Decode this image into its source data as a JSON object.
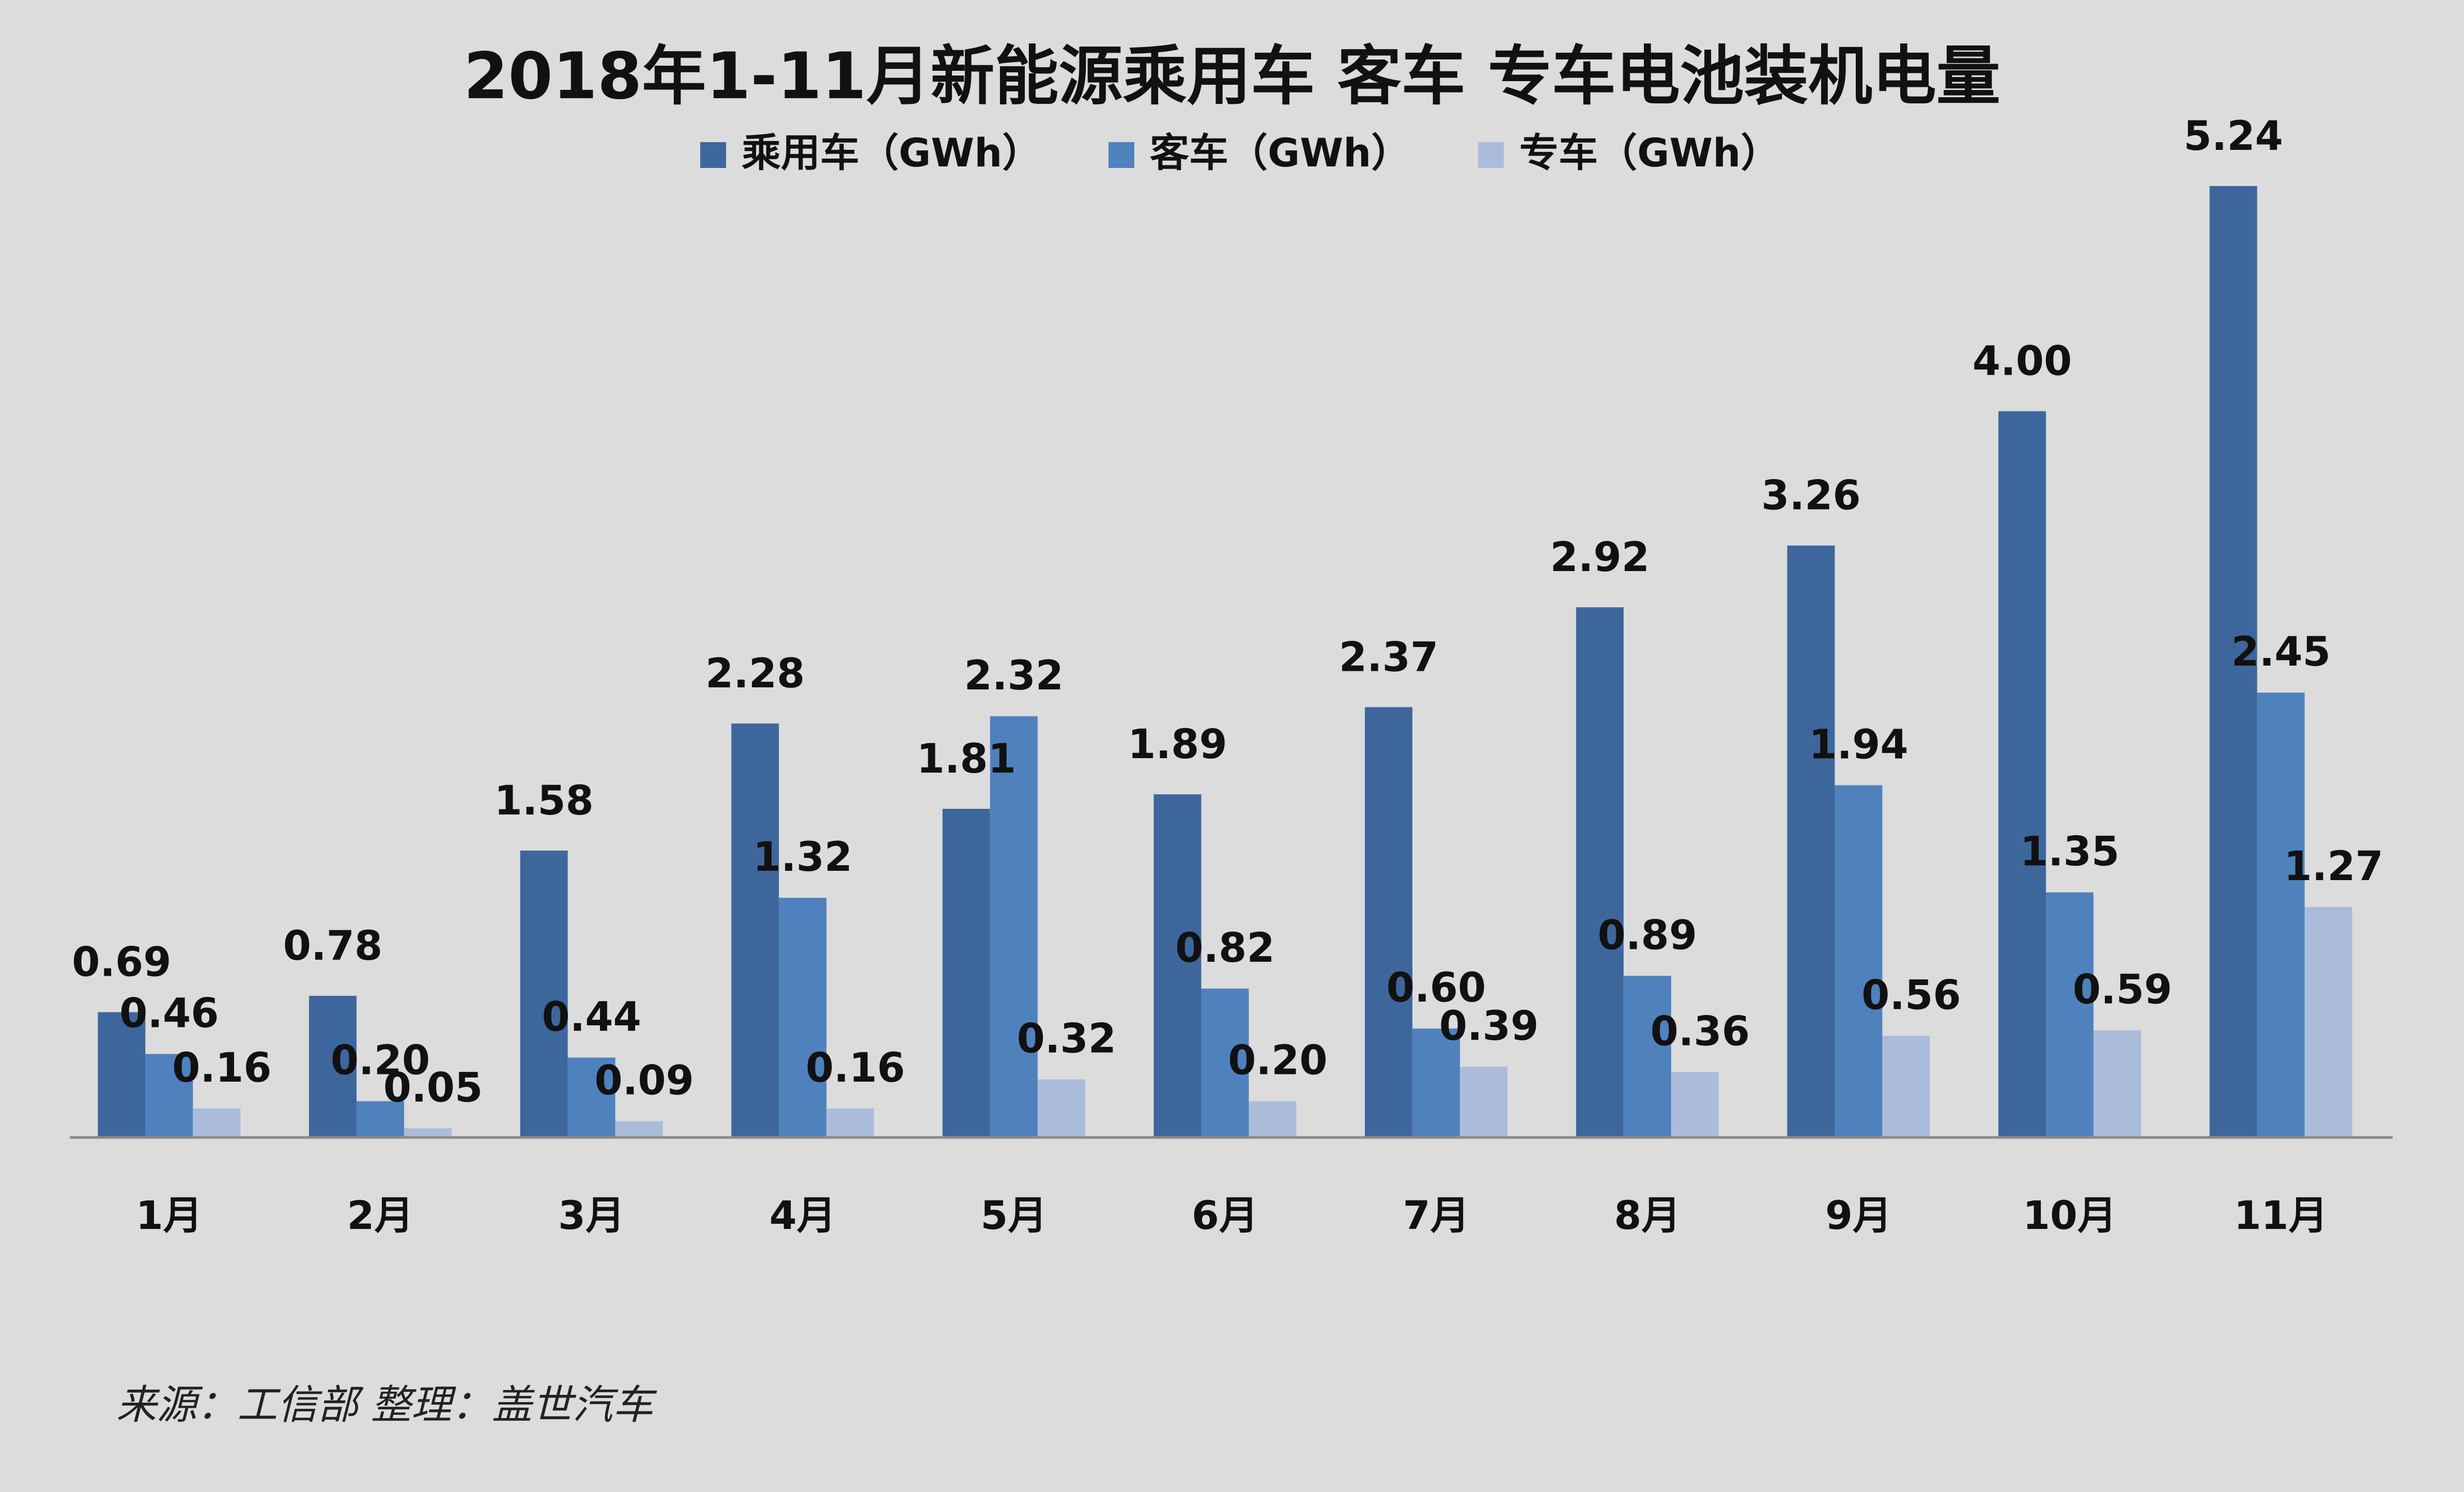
{
  "chart_data": {
    "type": "bar",
    "title": "2018年1-11月新能源乘用车 客车 专车电池装机电量",
    "categories": [
      "1月",
      "2月",
      "3月",
      "4月",
      "5月",
      "6月",
      "7月",
      "8月",
      "9月",
      "10月",
      "11月"
    ],
    "series": [
      {
        "name": "乘用车（GWh）",
        "color": "#3d679c",
        "values": [
          0.69,
          0.78,
          1.58,
          2.28,
          1.81,
          1.89,
          2.37,
          2.92,
          3.26,
          4.0,
          5.24
        ],
        "labels": [
          "0.69",
          "0.78",
          "1.58",
          "2.28",
          "1.81",
          "1.89",
          "2.37",
          "2.92",
          "3.26",
          "4.00",
          "5.24"
        ]
      },
      {
        "name": "客车（GWh）",
        "color": "#4f81bd",
        "values": [
          0.46,
          0.2,
          0.44,
          1.32,
          2.32,
          0.82,
          0.6,
          0.89,
          1.94,
          1.35,
          2.45
        ],
        "labels": [
          "0.46",
          "0.20",
          "0.44",
          "1.32",
          "2.32",
          "0.82",
          "0.60",
          "0.89",
          "1.94",
          "1.35",
          "2.45"
        ]
      },
      {
        "name": "专车（GWh）",
        "color": "#abbcdb",
        "values": [
          0.16,
          0.05,
          0.09,
          0.16,
          0.32,
          0.2,
          0.39,
          0.36,
          0.56,
          0.59,
          1.27
        ],
        "labels": [
          "0.16",
          "0.05",
          "0.09",
          "0.16",
          "0.32",
          "0.20",
          "0.39",
          "0.36",
          "0.56",
          "0.59",
          "1.27"
        ]
      }
    ],
    "ylim": [
      0,
      5.24
    ],
    "grid": false,
    "legend": "top-center",
    "source": "来源：工信部 整理：盖世汽车"
  }
}
